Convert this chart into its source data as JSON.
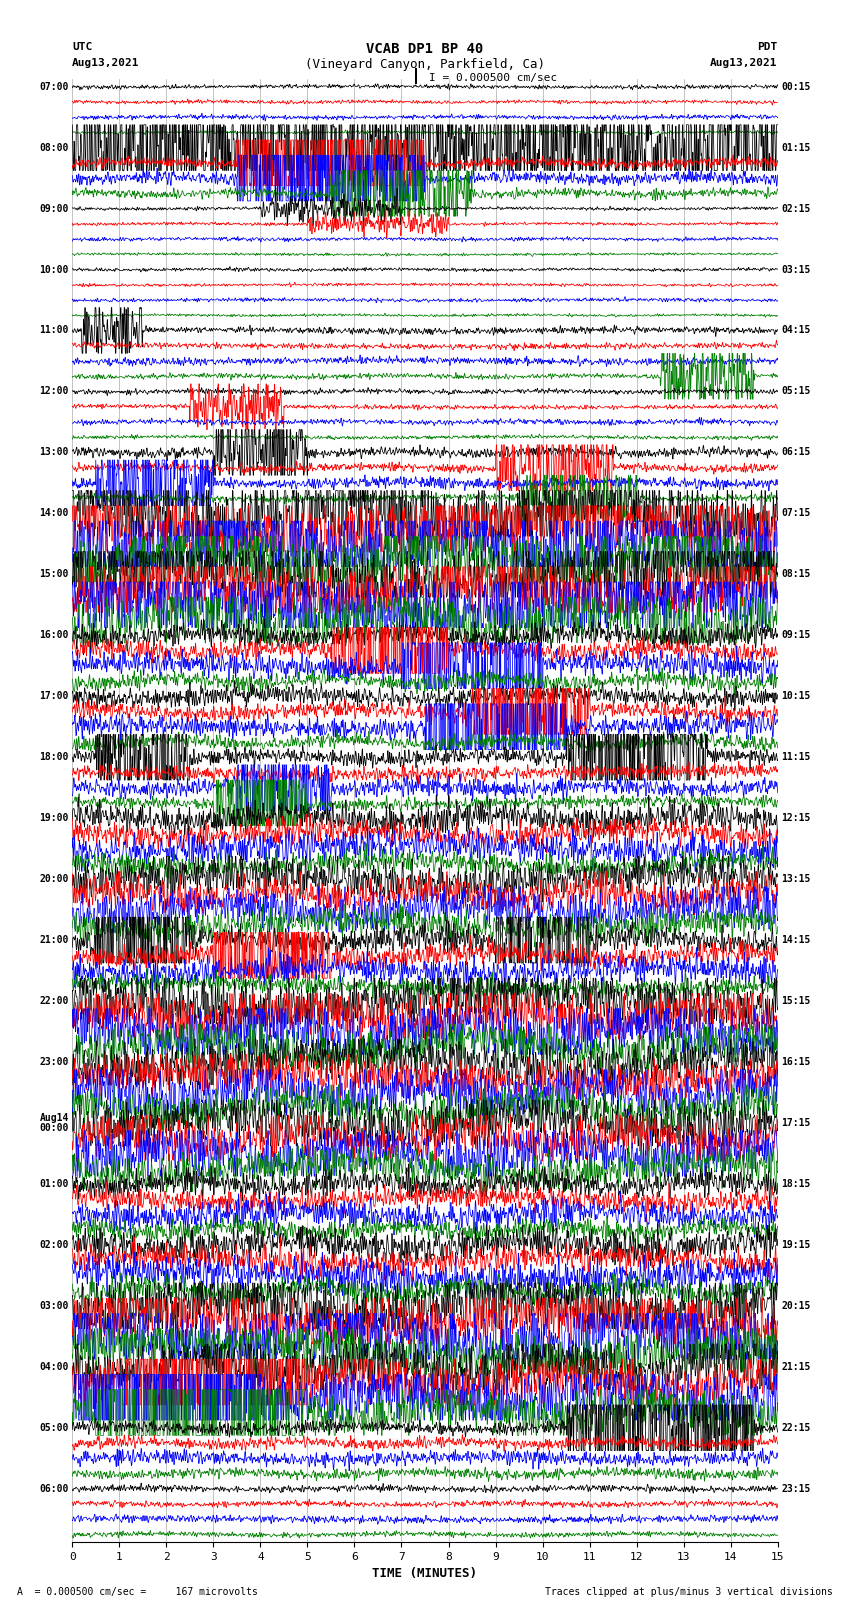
{
  "title_line1": "VCAB DP1 BP 40",
  "title_line2": "(Vineyard Canyon, Parkfield, Ca)",
  "scale_label": "I = 0.000500 cm/sec",
  "left_header_line1": "UTC",
  "left_header_line2": "Aug13,2021",
  "right_header_line1": "PDT",
  "right_header_line2": "Aug13,2021",
  "xlabel": "TIME (MINUTES)",
  "footer_left": "A  = 0.000500 cm/sec =     167 microvolts",
  "footer_right": "Traces clipped at plus/minus 3 vertical divisions",
  "xlim": [
    0,
    15
  ],
  "xticks": [
    0,
    1,
    2,
    3,
    4,
    5,
    6,
    7,
    8,
    9,
    10,
    11,
    12,
    13,
    14,
    15
  ],
  "colors": [
    "black",
    "red",
    "blue",
    "green"
  ],
  "utc_labels": [
    "07:00",
    "08:00",
    "09:00",
    "10:00",
    "11:00",
    "12:00",
    "13:00",
    "14:00",
    "15:00",
    "16:00",
    "17:00",
    "18:00",
    "19:00",
    "20:00",
    "21:00",
    "22:00",
    "23:00",
    "Aug14\n00:00",
    "01:00",
    "02:00",
    "03:00",
    "04:00",
    "05:00",
    "06:00"
  ],
  "pdt_labels": [
    "00:15",
    "01:15",
    "02:15",
    "03:15",
    "04:15",
    "05:15",
    "06:15",
    "07:15",
    "08:15",
    "09:15",
    "10:15",
    "11:15",
    "12:15",
    "13:15",
    "14:15",
    "15:15",
    "16:15",
    "17:15",
    "18:15",
    "19:15",
    "20:15",
    "21:15",
    "22:15",
    "23:15"
  ],
  "bg_color": "white",
  "num_groups": 24,
  "traces_per_group": 4,
  "noise_base": 0.08,
  "seed": 12345
}
